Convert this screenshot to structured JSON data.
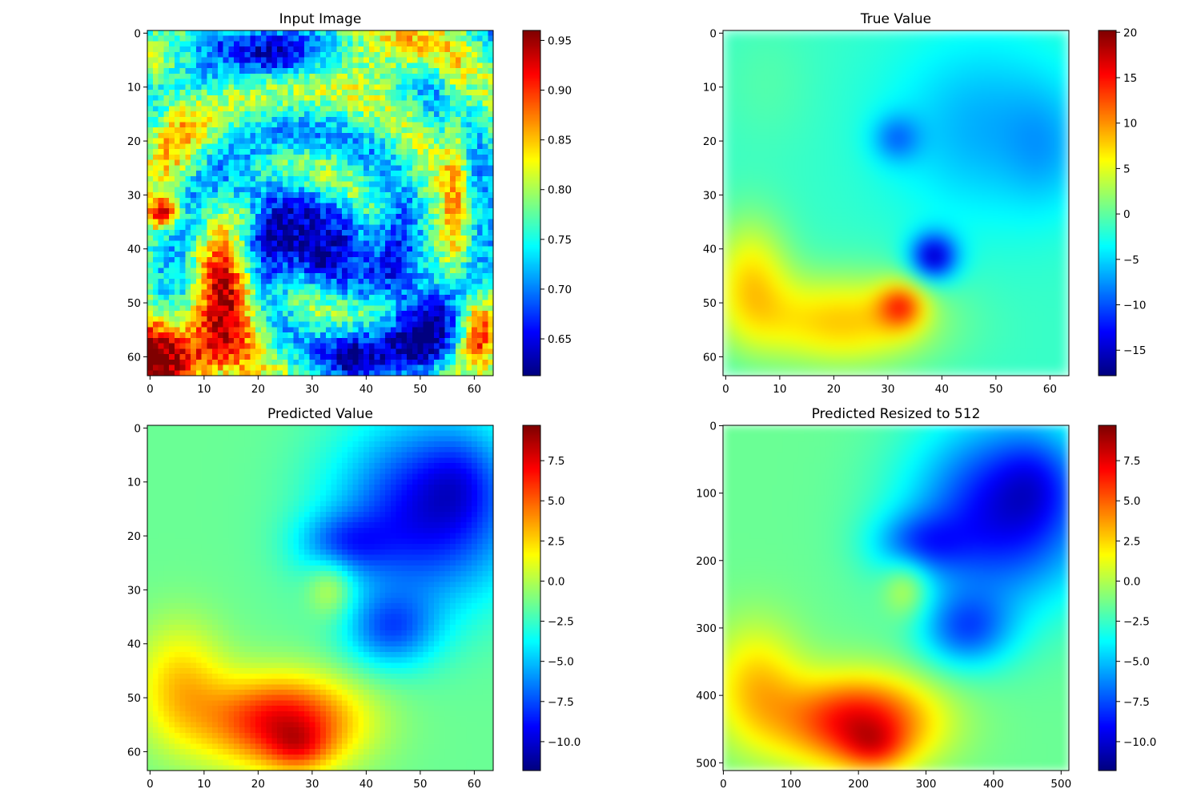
{
  "figure": {
    "background": "#ffffff",
    "colormap": "jet"
  },
  "chart_data": [
    {
      "type": "heatmap",
      "title": "Input Image",
      "grid_size": 64,
      "xlim": [
        0,
        64
      ],
      "ylim": [
        64,
        0
      ],
      "xticks": [
        0,
        10,
        20,
        30,
        40,
        50,
        60
      ],
      "yticks": [
        0,
        10,
        20,
        30,
        40,
        50,
        60
      ],
      "colorbar": {
        "min": 0.613,
        "max": 0.96,
        "ticks": [
          0.65,
          0.7,
          0.75,
          0.8,
          0.85,
          0.9,
          0.95
        ],
        "tick_labels": [
          "0.65",
          "0.70",
          "0.75",
          "0.80",
          "0.85",
          "0.90",
          "0.95"
        ]
      },
      "field": {
        "kind": "cloud",
        "smooth": false,
        "base": 0.76,
        "spiral": true,
        "features": [
          {
            "x": 30,
            "y": 40,
            "sx": 9,
            "sy": 5,
            "amp": -0.14
          },
          {
            "x": 22,
            "y": 30,
            "sx": 6,
            "sy": 3,
            "amp": -0.08
          },
          {
            "x": 50,
            "y": 54,
            "sx": 5,
            "sy": 8,
            "amp": -0.13
          },
          {
            "x": 38,
            "y": 60,
            "sx": 4,
            "sy": 4,
            "amp": -0.1
          },
          {
            "x": 24,
            "y": 5,
            "sx": 5,
            "sy": 3,
            "amp": -0.09
          },
          {
            "x": 10,
            "y": 2,
            "sx": 6,
            "sy": 2,
            "amp": -0.06
          },
          {
            "x": 44,
            "y": 4,
            "sx": 7,
            "sy": 4,
            "amp": 0.09
          },
          {
            "x": 5,
            "y": 60,
            "sx": 8,
            "sy": 5,
            "amp": 0.2
          },
          {
            "x": 15,
            "y": 47,
            "sx": 4,
            "sy": 7,
            "amp": 0.15
          },
          {
            "x": 3,
            "y": 34,
            "sx": 2,
            "sy": 2,
            "amp": 0.17
          },
          {
            "x": 61,
            "y": 55,
            "sx": 2,
            "sy": 5,
            "amp": 0.13
          },
          {
            "x": 57,
            "y": 28,
            "sx": 1.5,
            "sy": 14,
            "amp": 0.08
          },
          {
            "x": 5,
            "y": 18,
            "sx": 4,
            "sy": 8,
            "amp": 0.06
          }
        ]
      }
    },
    {
      "type": "heatmap",
      "title": "True Value",
      "grid_size": 64,
      "xlim": [
        0,
        64
      ],
      "ylim": [
        64,
        0
      ],
      "xticks": [
        0,
        10,
        20,
        30,
        40,
        50,
        60
      ],
      "yticks": [
        0,
        10,
        20,
        30,
        40,
        50,
        60
      ],
      "colorbar": {
        "min": -17.8,
        "max": 20.2,
        "ticks": [
          -15,
          -10,
          -5,
          0,
          5,
          10,
          15,
          20
        ],
        "tick_labels": [
          "−15",
          "−10",
          "−5",
          "0",
          "5",
          "10",
          "15",
          "20"
        ]
      },
      "field": {
        "kind": "smooth",
        "smooth": true,
        "base": -1.5,
        "features": [
          {
            "x": 48,
            "y": 18,
            "sx": 12,
            "sy": 12,
            "amp": -5
          },
          {
            "x": 32,
            "y": 20,
            "sx": 3,
            "sy": 3,
            "amp": -6
          },
          {
            "x": 39,
            "y": 42,
            "sx": 3,
            "sy": 3,
            "amp": -14
          },
          {
            "x": 60,
            "y": 22,
            "sx": 5,
            "sy": 8,
            "amp": -3
          },
          {
            "x": 22,
            "y": 54,
            "sx": 12,
            "sy": 6,
            "amp": 9.5
          },
          {
            "x": 5,
            "y": 46,
            "sx": 5,
            "sy": 8,
            "amp": 8
          },
          {
            "x": 33,
            "y": 51,
            "sx": 3,
            "sy": 3,
            "amp": 11
          },
          {
            "x": 8,
            "y": 10,
            "sx": 6,
            "sy": 8,
            "amp": 1
          }
        ]
      }
    },
    {
      "type": "heatmap",
      "title": "Predicted Value",
      "grid_size": 64,
      "xlim": [
        0,
        64
      ],
      "ylim": [
        64,
        0
      ],
      "xticks": [
        0,
        10,
        20,
        30,
        40,
        50,
        60
      ],
      "yticks": [
        0,
        10,
        20,
        30,
        40,
        50,
        60
      ],
      "colorbar": {
        "min": -11.8,
        "max": 9.7,
        "ticks": [
          -10.0,
          -7.5,
          -5.0,
          -2.5,
          0.0,
          2.5,
          5.0,
          7.5
        ],
        "tick_labels": [
          "−10.0",
          "−7.5",
          "−5.0",
          "−2.5",
          "0.0",
          "2.5",
          "5.0",
          "7.5"
        ]
      },
      "field": {
        "kind": "smooth",
        "smooth": false,
        "base": -1.5,
        "features": [
          {
            "x": 52,
            "y": 16,
            "sx": 12,
            "sy": 12,
            "amp": -8
          },
          {
            "x": 36,
            "y": 22,
            "sx": 6,
            "sy": 4,
            "amp": -4
          },
          {
            "x": 45,
            "y": 38,
            "sx": 6,
            "sy": 5,
            "amp": -5
          },
          {
            "x": 58,
            "y": 10,
            "sx": 5,
            "sy": 6,
            "amp": -2
          },
          {
            "x": 25,
            "y": 55,
            "sx": 10,
            "sy": 6,
            "amp": 9
          },
          {
            "x": 28,
            "y": 60,
            "sx": 4,
            "sy": 3,
            "amp": 3
          },
          {
            "x": 6,
            "y": 48,
            "sx": 6,
            "sy": 8,
            "amp": 4
          },
          {
            "x": 34,
            "y": 30,
            "sx": 3,
            "sy": 4,
            "amp": 3
          }
        ]
      }
    },
    {
      "type": "heatmap",
      "title": "Predicted Resized to 512",
      "grid_size": 512,
      "xlim": [
        0,
        512
      ],
      "ylim": [
        512,
        0
      ],
      "xticks": [
        0,
        100,
        200,
        300,
        400,
        500
      ],
      "yticks": [
        0,
        100,
        200,
        300,
        400,
        500
      ],
      "colorbar": {
        "min": -11.8,
        "max": 9.7,
        "ticks": [
          -10.0,
          -7.5,
          -5.0,
          -2.5,
          0.0,
          2.5,
          5.0,
          7.5
        ],
        "tick_labels": [
          "−10.0",
          "−7.5",
          "−5.0",
          "−2.5",
          "0.0",
          "2.5",
          "5.0",
          "7.5"
        ]
      },
      "field": {
        "kind": "smooth",
        "smooth": true,
        "base": -1.5,
        "features": [
          {
            "x": 52,
            "y": 16,
            "sx": 12,
            "sy": 12,
            "amp": -8
          },
          {
            "x": 36,
            "y": 22,
            "sx": 6,
            "sy": 4,
            "amp": -4
          },
          {
            "x": 45,
            "y": 38,
            "sx": 6,
            "sy": 5,
            "amp": -5
          },
          {
            "x": 58,
            "y": 10,
            "sx": 5,
            "sy": 6,
            "amp": -2
          },
          {
            "x": 25,
            "y": 55,
            "sx": 10,
            "sy": 6,
            "amp": 9
          },
          {
            "x": 28,
            "y": 60,
            "sx": 4,
            "sy": 3,
            "amp": 3
          },
          {
            "x": 6,
            "y": 48,
            "sx": 6,
            "sy": 8,
            "amp": 4
          },
          {
            "x": 34,
            "y": 30,
            "sx": 3,
            "sy": 4,
            "amp": 3
          }
        ]
      }
    }
  ]
}
